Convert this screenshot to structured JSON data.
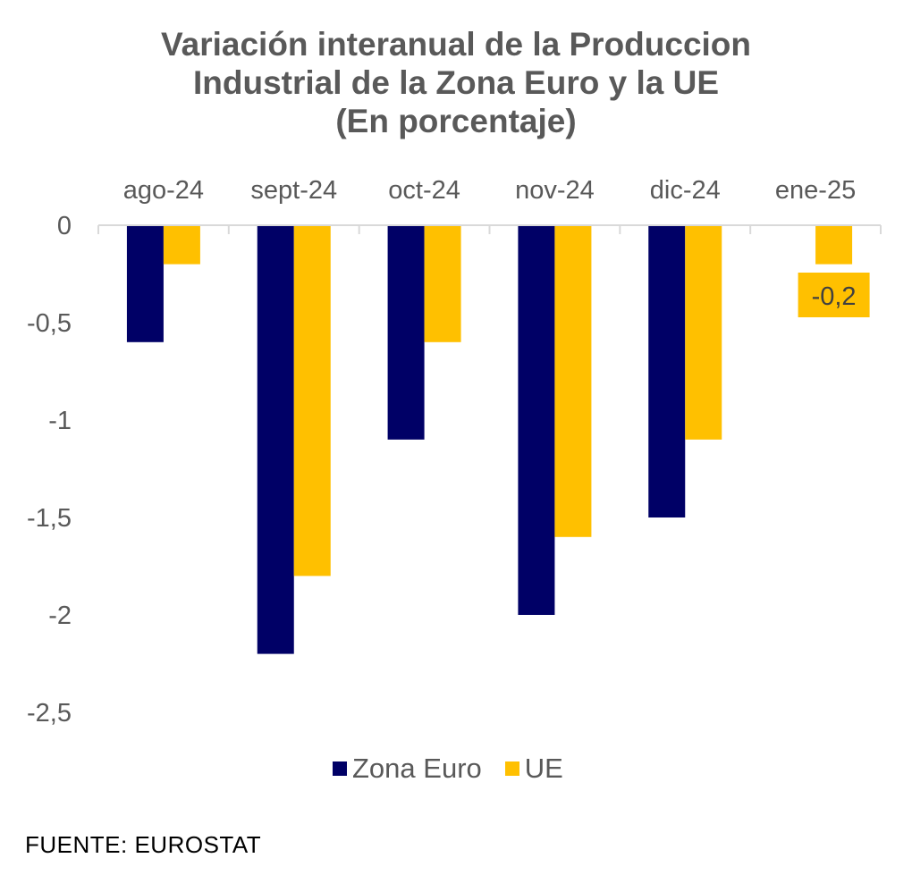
{
  "chart_data": {
    "type": "bar",
    "title": [
      "Variación interanual de la Produccion",
      "Industrial de la Zona Euro y la UE",
      "(En porcentaje)"
    ],
    "categories": [
      "ago-24",
      "sept-24",
      "oct-24",
      "nov-24",
      "dic-24",
      "ene-25"
    ],
    "series": [
      {
        "name": "Zona Euro",
        "color": "#000066",
        "values": [
          -0.6,
          -2.2,
          -1.1,
          -2.0,
          -1.5,
          null
        ]
      },
      {
        "name": "UE",
        "color": "#FFC000",
        "values": [
          -0.2,
          -1.8,
          -0.6,
          -1.6,
          -1.1,
          -0.2
        ]
      }
    ],
    "ylim": [
      -2.5,
      0
    ],
    "yticks": [
      0,
      -0.5,
      -1,
      -1.5,
      -2,
      -2.5
    ],
    "ytick_labels": [
      "0",
      "-0,5",
      "-1",
      "-1,5",
      "-2",
      "-2,5"
    ],
    "xlabel": "",
    "ylabel": "",
    "x_axis_position": "top",
    "grid": false,
    "legend_position": "bottom",
    "annotations": [
      {
        "category": "ene-25",
        "series": "UE",
        "text": "-0,2"
      }
    ]
  },
  "source": "FUENTE: EUROSTAT"
}
